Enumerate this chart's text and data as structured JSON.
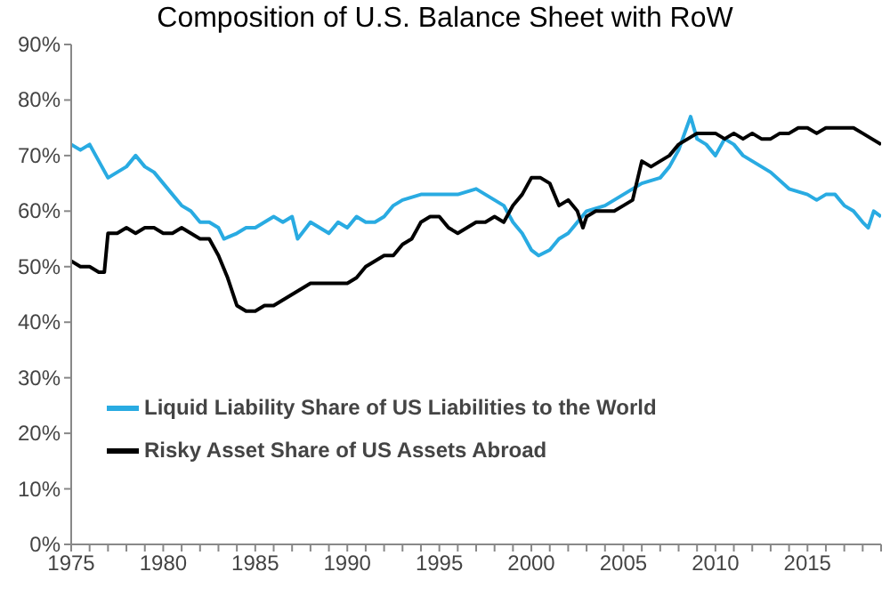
{
  "chart_data": {
    "type": "line",
    "title": "Composition of U.S. Balance Sheet with RoW",
    "xlim": [
      1975,
      2019
    ],
    "xticks": [
      1975,
      {
        "value": 1976,
        "label": null
      },
      {
        "value": 1977,
        "label": null
      },
      {
        "value": 1978,
        "label": null
      },
      {
        "value": 1979,
        "label": null
      },
      1980,
      {
        "value": 1981,
        "label": null
      },
      {
        "value": 1982,
        "label": null
      },
      {
        "value": 1983,
        "label": null
      },
      {
        "value": 1984,
        "label": null
      },
      1985,
      {
        "value": 1986,
        "label": null
      },
      {
        "value": 1987,
        "label": null
      },
      {
        "value": 1988,
        "label": null
      },
      {
        "value": 1989,
        "label": null
      },
      1990,
      {
        "value": 1991,
        "label": null
      },
      {
        "value": 1992,
        "label": null
      },
      {
        "value": 1993,
        "label": null
      },
      {
        "value": 1994,
        "label": null
      },
      1995,
      {
        "value": 1996,
        "label": null
      },
      {
        "value": 1997,
        "label": null
      },
      {
        "value": 1998,
        "label": null
      },
      {
        "value": 1999,
        "label": null
      },
      2000,
      {
        "value": 2001,
        "label": null
      },
      {
        "value": 2002,
        "label": null
      },
      {
        "value": 2003,
        "label": null
      },
      {
        "value": 2004,
        "label": null
      },
      2005,
      {
        "value": 2006,
        "label": null
      },
      {
        "value": 2007,
        "label": null
      },
      {
        "value": 2008,
        "label": null
      },
      {
        "value": 2009,
        "label": null
      },
      2010,
      {
        "value": 2011,
        "label": null
      },
      {
        "value": 2012,
        "label": null
      },
      {
        "value": 2013,
        "label": null
      },
      {
        "value": 2014,
        "label": null
      },
      2015,
      {
        "value": 2016,
        "label": null
      },
      {
        "value": 2017,
        "label": null
      },
      {
        "value": 2018,
        "label": null
      },
      {
        "value": 2019,
        "label": null
      }
    ],
    "ylim": [
      0,
      90
    ],
    "yticks": [
      {
        "value": 0,
        "label": "0%"
      },
      {
        "value": 10,
        "label": "10%"
      },
      {
        "value": 20,
        "label": "20%"
      },
      {
        "value": 30,
        "label": "30%"
      },
      {
        "value": 40,
        "label": "40%"
      },
      {
        "value": 50,
        "label": "50%"
      },
      {
        "value": 60,
        "label": "60%"
      },
      {
        "value": 70,
        "label": "70%"
      },
      {
        "value": 80,
        "label": "80%"
      },
      {
        "value": 90,
        "label": "90%"
      }
    ],
    "grid": false,
    "legend": "bottom left",
    "marker": "none",
    "line_style": "solid",
    "series": [
      {
        "name": "Liquid Liability Share of US Liabilities to the World",
        "color": "#29abe2",
        "x": [
          1975,
          1975.5,
          1976,
          1976.5,
          1977,
          1977.5,
          1978,
          1978.5,
          1979,
          1979.5,
          1980,
          1980.5,
          1981,
          1981.5,
          1982,
          1982.5,
          1983,
          1983.3,
          1984,
          1984.5,
          1985,
          1985.5,
          1986,
          1986.5,
          1987,
          1987.3,
          1988,
          1988.5,
          1989,
          1989.5,
          1990,
          1990.5,
          1991,
          1991.5,
          1992,
          1992.5,
          1993,
          1994,
          1995,
          1996,
          1997,
          1997.5,
          1998,
          1998.5,
          1999,
          1999.5,
          2000,
          2000.4,
          2001,
          2001.5,
          2002,
          2002.5,
          2003,
          2004,
          2005,
          2006,
          2007,
          2007.5,
          2008,
          2008.65,
          2009,
          2009.5,
          2010,
          2010.5,
          2011,
          2011.5,
          2012,
          2013,
          2014,
          2015,
          2015.5,
          2016,
          2016.5,
          2017,
          2017.5,
          2018,
          2018.3,
          2018.6,
          2019
        ],
        "values": [
          72,
          71,
          72,
          69,
          66,
          67,
          68,
          70,
          68,
          67,
          65,
          63,
          61,
          60,
          58,
          58,
          57,
          55,
          56,
          57,
          57,
          58,
          59,
          58,
          59,
          55,
          58,
          57,
          56,
          58,
          57,
          59,
          58,
          58,
          59,
          61,
          62,
          63,
          63,
          63,
          64,
          63,
          62,
          61,
          58,
          56,
          53,
          52,
          53,
          55,
          56,
          58,
          60,
          61,
          63,
          65,
          66,
          68,
          71,
          77,
          73,
          72,
          70,
          73,
          72,
          70,
          69,
          67,
          64,
          63,
          62,
          63,
          63,
          61,
          60,
          58,
          57,
          60,
          59
        ]
      },
      {
        "name": "Risky Asset Share of US Assets Abroad",
        "color": "#000000",
        "x": [
          1975,
          1975.5,
          1976,
          1976.5,
          1976.8,
          1977,
          1977.5,
          1978,
          1978.5,
          1979,
          1979.5,
          1980,
          1980.5,
          1981,
          1981.5,
          1982,
          1982.5,
          1983,
          1983.5,
          1984,
          1984.5,
          1985,
          1985.5,
          1986,
          1986.5,
          1987,
          1987.5,
          1988,
          1988.5,
          1989,
          1989.5,
          1990,
          1990.5,
          1991,
          1991.5,
          1992,
          1992.5,
          1993,
          1993.5,
          1994,
          1994.5,
          1995,
          1995.5,
          1996,
          1996.5,
          1997,
          1997.5,
          1998,
          1998.5,
          1999,
          1999.5,
          2000,
          2000.5,
          2001,
          2001.5,
          2002,
          2002.5,
          2002.8,
          2003,
          2003.5,
          2004,
          2004.5,
          2005,
          2005.5,
          2006,
          2006.5,
          2007,
          2007.5,
          2008,
          2008.5,
          2009,
          2009.5,
          2010,
          2010.5,
          2011,
          2011.5,
          2012,
          2012.5,
          2013,
          2013.5,
          2014,
          2014.5,
          2015,
          2015.5,
          2016,
          2016.5,
          2017,
          2017.5,
          2018,
          2018.5,
          2019
        ],
        "values": [
          51,
          50,
          50,
          49,
          49,
          56,
          56,
          57,
          56,
          57,
          57,
          56,
          56,
          57,
          56,
          55,
          55,
          52,
          48,
          43,
          42,
          42,
          43,
          43,
          44,
          45,
          46,
          47,
          47,
          47,
          47,
          47,
          48,
          50,
          51,
          52,
          52,
          54,
          55,
          58,
          59,
          59,
          57,
          56,
          57,
          58,
          58,
          59,
          58,
          61,
          63,
          66,
          66,
          65,
          61,
          62,
          60,
          57,
          59,
          60,
          60,
          60,
          61,
          62,
          69,
          68,
          69,
          70,
          72,
          73,
          74,
          74,
          74,
          73,
          74,
          73,
          74,
          73,
          73,
          74,
          74,
          75,
          75,
          74,
          75,
          75,
          75,
          75,
          74,
          73,
          72
        ]
      }
    ]
  }
}
